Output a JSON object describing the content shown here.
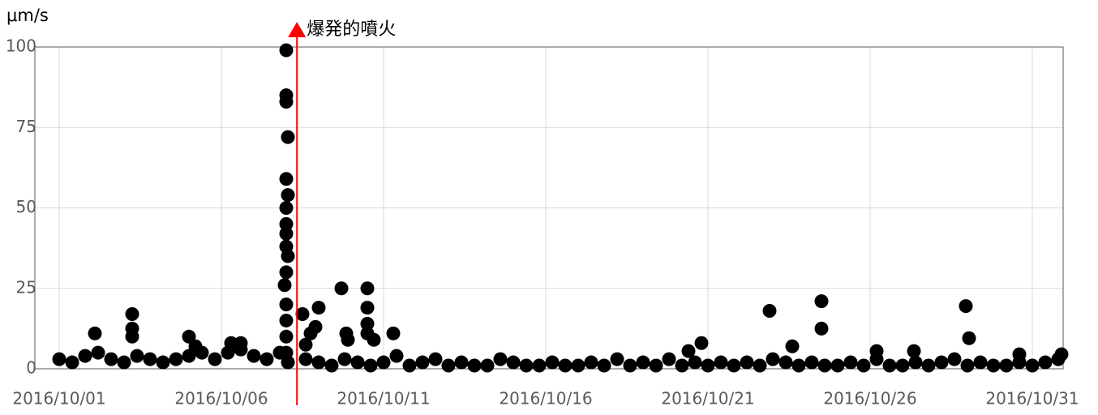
{
  "chart_data": {
    "type": "scatter",
    "y_unit_label": "μm/s",
    "annotation": "爆発的噴火",
    "eruption_x": 8.33,
    "xlim": [
      0.25,
      31.95
    ],
    "xticks": [
      {
        "value": 1,
        "label": "2016/10/01"
      },
      {
        "value": 6,
        "label": "2016/10/06"
      },
      {
        "value": 11,
        "label": "2016/10/11"
      },
      {
        "value": 16,
        "label": "2016/10/16"
      },
      {
        "value": 21,
        "label": "2016/10/21"
      },
      {
        "value": 26,
        "label": "2016/10/26"
      },
      {
        "value": 31,
        "label": "2016/10/31"
      }
    ],
    "ylim": [
      0,
      100
    ],
    "yticks": [
      0,
      25,
      50,
      75,
      100
    ],
    "grid": true,
    "series": [
      {
        "color": "#000000",
        "x": [
          3.25,
          3.25,
          3.25,
          2.1,
          5.0,
          5.2,
          6.3,
          6.6,
          8.0,
          8.0,
          8.0,
          8.05,
          8.0,
          8.05,
          8.0,
          8.0,
          8.0,
          8.0,
          8.05,
          8.0,
          7.95,
          8.0,
          8.0,
          8.0,
          8.0,
          8.05,
          8.5,
          9.0,
          8.9,
          8.75,
          8.6,
          9.7,
          9.85,
          9.9,
          10.5,
          10.5,
          10.5,
          10.5,
          10.7,
          11.3,
          20.8,
          20.4,
          22.9,
          23.6,
          24.5,
          24.5,
          26.2,
          27.35,
          28.95,
          29.05,
          30.6,
          31.9,
          1.0,
          1.4,
          1.8,
          2.2,
          2.6,
          3.0,
          3.4,
          3.8,
          4.2,
          4.6,
          5.0,
          5.4,
          5.8,
          6.2,
          6.6,
          7.0,
          7.4,
          7.8,
          8.6,
          9.0,
          9.4,
          9.8,
          10.2,
          10.6,
          11.0,
          11.4,
          11.8,
          12.2,
          12.6,
          13.0,
          13.4,
          13.8,
          14.2,
          14.6,
          15.0,
          15.4,
          15.8,
          16.2,
          16.6,
          17.0,
          17.4,
          17.8,
          18.2,
          18.6,
          19.0,
          19.4,
          19.8,
          20.2,
          20.6,
          21.0,
          21.4,
          21.8,
          22.2,
          22.6,
          23.0,
          23.4,
          23.8,
          24.2,
          24.6,
          25.0,
          25.4,
          25.8,
          26.2,
          26.6,
          27.0,
          27.4,
          27.8,
          28.2,
          28.6,
          29.0,
          29.4,
          29.8,
          30.2,
          30.6,
          31.0,
          31.4,
          31.8
        ],
        "values": [
          17,
          12.5,
          10,
          11,
          10,
          7,
          8,
          8,
          99,
          85,
          83,
          72,
          59,
          54,
          50,
          45,
          42,
          38,
          35,
          30,
          26,
          20,
          15,
          10,
          5,
          2,
          17,
          19,
          13,
          11,
          7.5,
          25,
          11,
          9,
          25,
          19,
          14,
          11,
          9,
          11,
          8,
          5.5,
          18,
          7,
          21,
          12.5,
          5.5,
          5.5,
          19.5,
          9.5,
          4.5,
          4.5,
          3,
          2,
          4,
          5,
          3,
          2,
          4,
          3,
          2,
          3,
          4,
          5,
          3,
          5,
          6,
          4,
          3,
          5,
          3,
          2,
          1,
          3,
          2,
          1,
          2,
          4,
          1,
          2,
          3,
          1,
          2,
          1,
          1,
          3,
          2,
          1,
          1,
          2,
          1,
          1,
          2,
          1,
          3,
          1,
          2,
          1,
          3,
          1,
          2,
          1,
          2,
          1,
          2,
          1,
          3,
          2,
          1,
          2,
          1,
          1,
          2,
          1,
          3,
          1,
          1,
          2,
          1,
          2,
          3,
          1,
          2,
          1,
          1,
          2,
          1,
          2,
          3
        ]
      }
    ]
  }
}
